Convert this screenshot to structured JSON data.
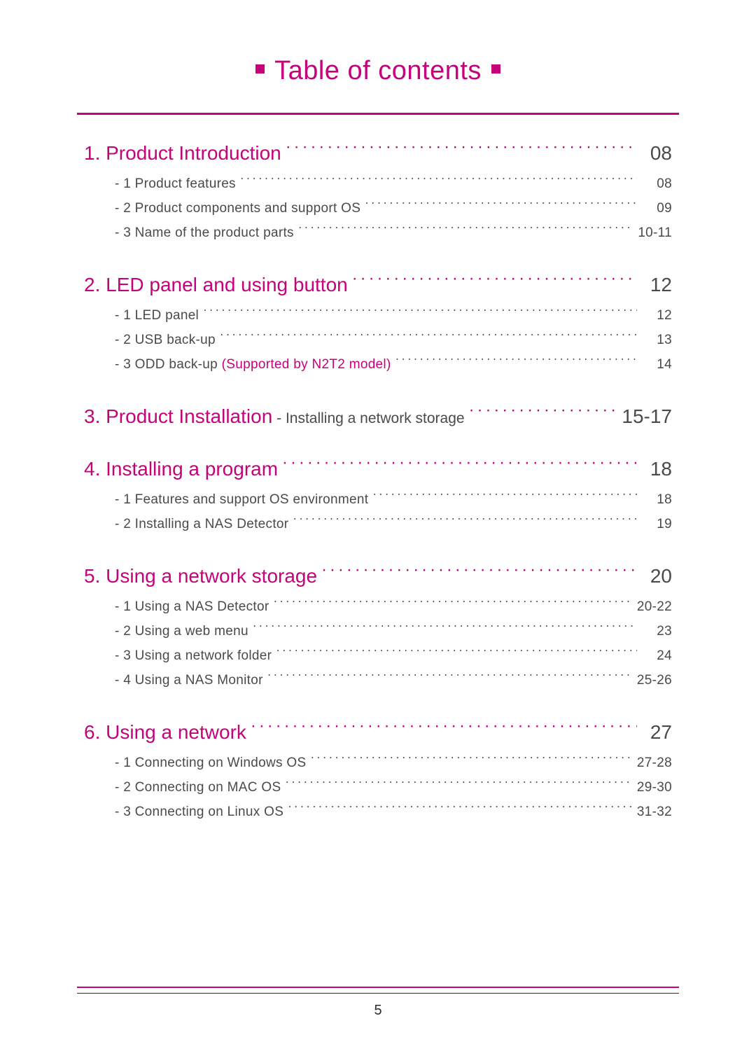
{
  "title": "Table of contents",
  "page_number": "5",
  "colors": {
    "accent": "#c4037a",
    "text": "#4a4a4a",
    "black": "#2b2b2b",
    "background": "#ffffff"
  },
  "typography": {
    "title_fontsize": 38,
    "chapter_fontsize": 28,
    "sub_fontsize": 19,
    "suffix_fontsize": 21,
    "page_num_fontsize": 20,
    "font_family": "Century Gothic / Futura-like geometric sans"
  },
  "sections": [
    {
      "chapter_label": "1. Product Introduction",
      "chapter_page": "08",
      "subs": [
        {
          "label": "- 1 Product features",
          "page": "08"
        },
        {
          "label": "- 2 Product components and support OS",
          "page": "09"
        },
        {
          "label": "- 3 Name of the product parts",
          "page": "10-11"
        }
      ]
    },
    {
      "chapter_label": "2. LED panel and using button",
      "chapter_page": "12",
      "subs": [
        {
          "label": "- 1 LED panel",
          "page": "12"
        },
        {
          "label": "- 2 USB back-up",
          "page": "13"
        },
        {
          "label": "- 3 ODD back-up ",
          "note": "(Supported by N2T2 model)",
          "page": "14"
        }
      ]
    },
    {
      "chapter_label": "3. Product Installation",
      "chapter_suffix": " - Installing a network storage",
      "chapter_page": "15-17",
      "subs": []
    },
    {
      "chapter_label": "4. Installing a program",
      "chapter_page": "18",
      "subs": [
        {
          "label": "- 1 Features and support OS environment",
          "page": "18"
        },
        {
          "label": "- 2 Installing a NAS Detector",
          "page": "19"
        }
      ]
    },
    {
      "chapter_label": "5. Using a network storage",
      "chapter_page": "20",
      "subs": [
        {
          "label": "- 1 Using a NAS Detector",
          "page": "20-22"
        },
        {
          "label": "- 2 Using a web menu",
          "page": "23"
        },
        {
          "label": "- 3 Using a network folder",
          "page": "24"
        },
        {
          "label": "- 4 Using a NAS Monitor",
          "page": "25-26"
        }
      ]
    },
    {
      "chapter_label": "6. Using a network",
      "chapter_page": "27",
      "subs": [
        {
          "label": "- 1 Connecting on Windows OS",
          "page": "27-28"
        },
        {
          "label": "- 2 Connecting on MAC OS",
          "page": "29-30"
        },
        {
          "label": "- 3 Connecting on Linux OS",
          "page": "31-32"
        }
      ]
    }
  ]
}
